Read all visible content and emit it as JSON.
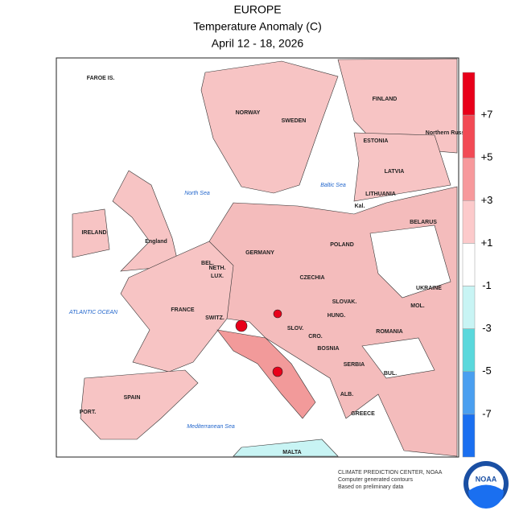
{
  "header": {
    "title": "EUROPE",
    "subtitle": "Temperature Anomaly (C)",
    "dates": "April 12 - 18, 2026"
  },
  "map": {
    "countries": [
      "FAROE IS.",
      "NORWAY",
      "SWEDEN",
      "FINLAND",
      "ESTONIA",
      "LATVIA",
      "LITHUANIA",
      "Kal.",
      "BELARUS",
      "IRELAND",
      "England",
      "NETH.",
      "BEL.",
      "LUX.",
      "GERMANY",
      "POLAND",
      "CZECHIA",
      "SLOVAK.",
      "UKRAINE",
      "MOL.",
      "HUNG.",
      "ROMANIA",
      "FRANCE",
      "SWITZ.",
      "SLOV.",
      "CRO.",
      "BOSNIA",
      "SERBIA",
      "BUL.",
      "ALB.",
      "GREECE",
      "SPAIN",
      "PORT.",
      "MALTA",
      "Northern Russia"
    ],
    "seas": [
      "North Sea",
      "Baltic Sea",
      "ATLANTIC OCEAN",
      "Mediterranean Sea"
    ]
  },
  "legend": {
    "labels": [
      "+7",
      "+5",
      "+3",
      "+1",
      "-1",
      "-3",
      "-5",
      "-7"
    ],
    "colors": [
      "#e8001a",
      "#f24a55",
      "#f7999c",
      "#fccacb",
      "#ffffff",
      "#c8f4f4",
      "#5ad8dc",
      "#4a9ff0",
      "#1a6ff0"
    ]
  },
  "credits": [
    "CLIMATE PREDICTION CENTER, NOAA",
    "Computer generated contours",
    "Based on preliminary data"
  ],
  "logo": "NOAA"
}
